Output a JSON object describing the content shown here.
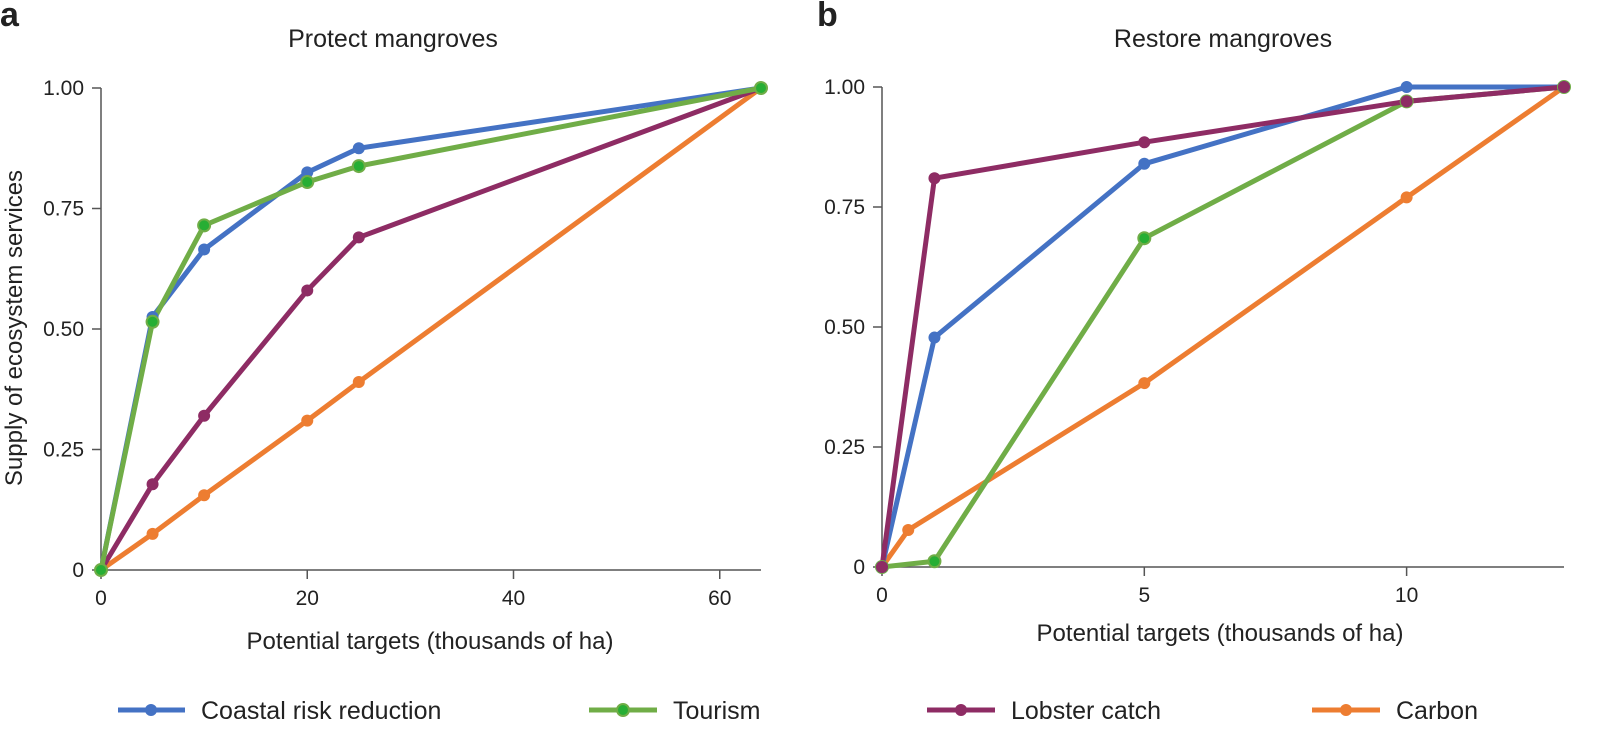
{
  "colors": {
    "coastal": "#4472C4",
    "tourism": "#70AD47",
    "tourism_marker": "#27AE34",
    "lobster": "#8E2C64",
    "carbon": "#ED7D31"
  },
  "legend": [
    {
      "key": "coastal",
      "label": "Coastal risk reduction"
    },
    {
      "key": "tourism",
      "label": "Tourism"
    },
    {
      "key": "lobster",
      "label": "Lobster catch"
    },
    {
      "key": "carbon",
      "label": "Carbon"
    }
  ],
  "shared": {
    "ylabel": "Supply of ecosystem services"
  },
  "chart_data": [
    {
      "type": "line",
      "panel": "a",
      "title": "Protect mangroves",
      "xlabel": "Potential targets (thousands of ha)",
      "ylabel": "Supply of ecosystem services",
      "xlim": [
        0,
        64
      ],
      "ylim": [
        0,
        1
      ],
      "xticks": [
        0,
        20,
        40,
        60
      ],
      "xtick_labels": [
        "0",
        "20",
        "40",
        "60"
      ],
      "yticks": [
        0,
        0.25,
        0.5,
        0.75,
        1
      ],
      "ytick_labels": [
        "0",
        "0.25",
        "0.50",
        "0.75",
        "1.00"
      ],
      "series": [
        {
          "key": "carbon",
          "name": "Carbon",
          "x": [
            0,
            5,
            10,
            20,
            25,
            64
          ],
          "y": [
            0,
            0.075,
            0.155,
            0.31,
            0.39,
            1.0
          ]
        },
        {
          "key": "lobster",
          "name": "Lobster catch",
          "x": [
            0,
            5,
            10,
            20,
            25,
            64
          ],
          "y": [
            0,
            0.178,
            0.32,
            0.58,
            0.69,
            1.0
          ]
        },
        {
          "key": "coastal",
          "name": "Coastal risk reduction",
          "x": [
            0,
            5,
            10,
            20,
            25,
            64
          ],
          "y": [
            0,
            0.525,
            0.665,
            0.825,
            0.875,
            1.0
          ]
        },
        {
          "key": "tourism",
          "name": "Tourism",
          "x": [
            0,
            5,
            10,
            20,
            25,
            64
          ],
          "y": [
            0,
            0.515,
            0.715,
            0.805,
            0.838,
            1.0
          ]
        }
      ]
    },
    {
      "type": "line",
      "panel": "b",
      "title": "Restore mangroves",
      "xlabel": "Potential targets (thousands of ha)",
      "ylabel": "",
      "xlim": [
        0,
        13
      ],
      "ylim": [
        0,
        1
      ],
      "xticks": [
        0,
        5,
        10
      ],
      "xtick_labels": [
        "0",
        "5",
        "10"
      ],
      "yticks": [
        0,
        0.25,
        0.5,
        0.75,
        1
      ],
      "ytick_labels": [
        "0",
        "0.25",
        "0.50",
        "0.75",
        "1.00"
      ],
      "series": [
        {
          "key": "carbon",
          "name": "Carbon",
          "x": [
            0,
            0.5,
            5,
            10,
            13
          ],
          "y": [
            0,
            0.077,
            0.383,
            0.77,
            1.0
          ]
        },
        {
          "key": "tourism",
          "name": "Tourism",
          "x": [
            0,
            1,
            5,
            10,
            13
          ],
          "y": [
            0,
            0.012,
            0.685,
            0.97,
            1.0
          ]
        },
        {
          "key": "coastal",
          "name": "Coastal risk reduction",
          "x": [
            0,
            1,
            5,
            10,
            13
          ],
          "y": [
            0,
            0.478,
            0.84,
            1.0,
            1.0
          ]
        },
        {
          "key": "lobster",
          "name": "Lobster catch",
          "x": [
            0,
            1,
            5,
            10,
            13
          ],
          "y": [
            0,
            0.81,
            0.885,
            0.97,
            1.0
          ]
        }
      ]
    }
  ]
}
